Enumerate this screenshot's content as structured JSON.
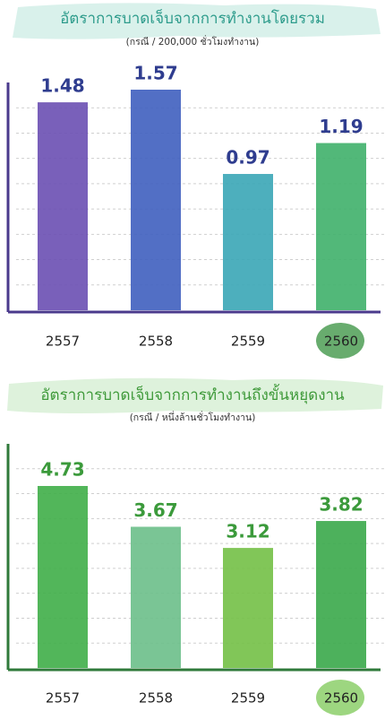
{
  "chart_data": [
    {
      "type": "bar",
      "title": "อัตราการบาดเจ็บจากการทำงานโดยรวม",
      "subtitle": "(กรณี / 200,000 ชั่วโมงทำงาน)",
      "categories": [
        "2557",
        "2558",
        "2559",
        "2560"
      ],
      "values": [
        1.48,
        1.57,
        0.97,
        1.19
      ],
      "colors": [
        "#6a4fb3",
        "#3f5fbf",
        "#3aa6b6",
        "#3fb06a"
      ],
      "label_color": "#2f3d8f",
      "axis_color": "#4a3a8c"
    },
    {
      "type": "bar",
      "title": "อัตราการบาดเจ็บจากการทำงานถึงขั้นหยุดงาน",
      "subtitle": "(กรณี / หนึ่งล้านชั่วโมงทำงาน)",
      "categories": [
        "2557",
        "2558",
        "2559",
        "2560"
      ],
      "values": [
        4.73,
        3.67,
        3.12,
        3.82
      ],
      "colors": [
        "#3fae48",
        "#6cbf8a",
        "#73c046",
        "#3aa84a"
      ],
      "label_color": "#3b9a3b",
      "axis_color": "#2f7a3a"
    }
  ]
}
